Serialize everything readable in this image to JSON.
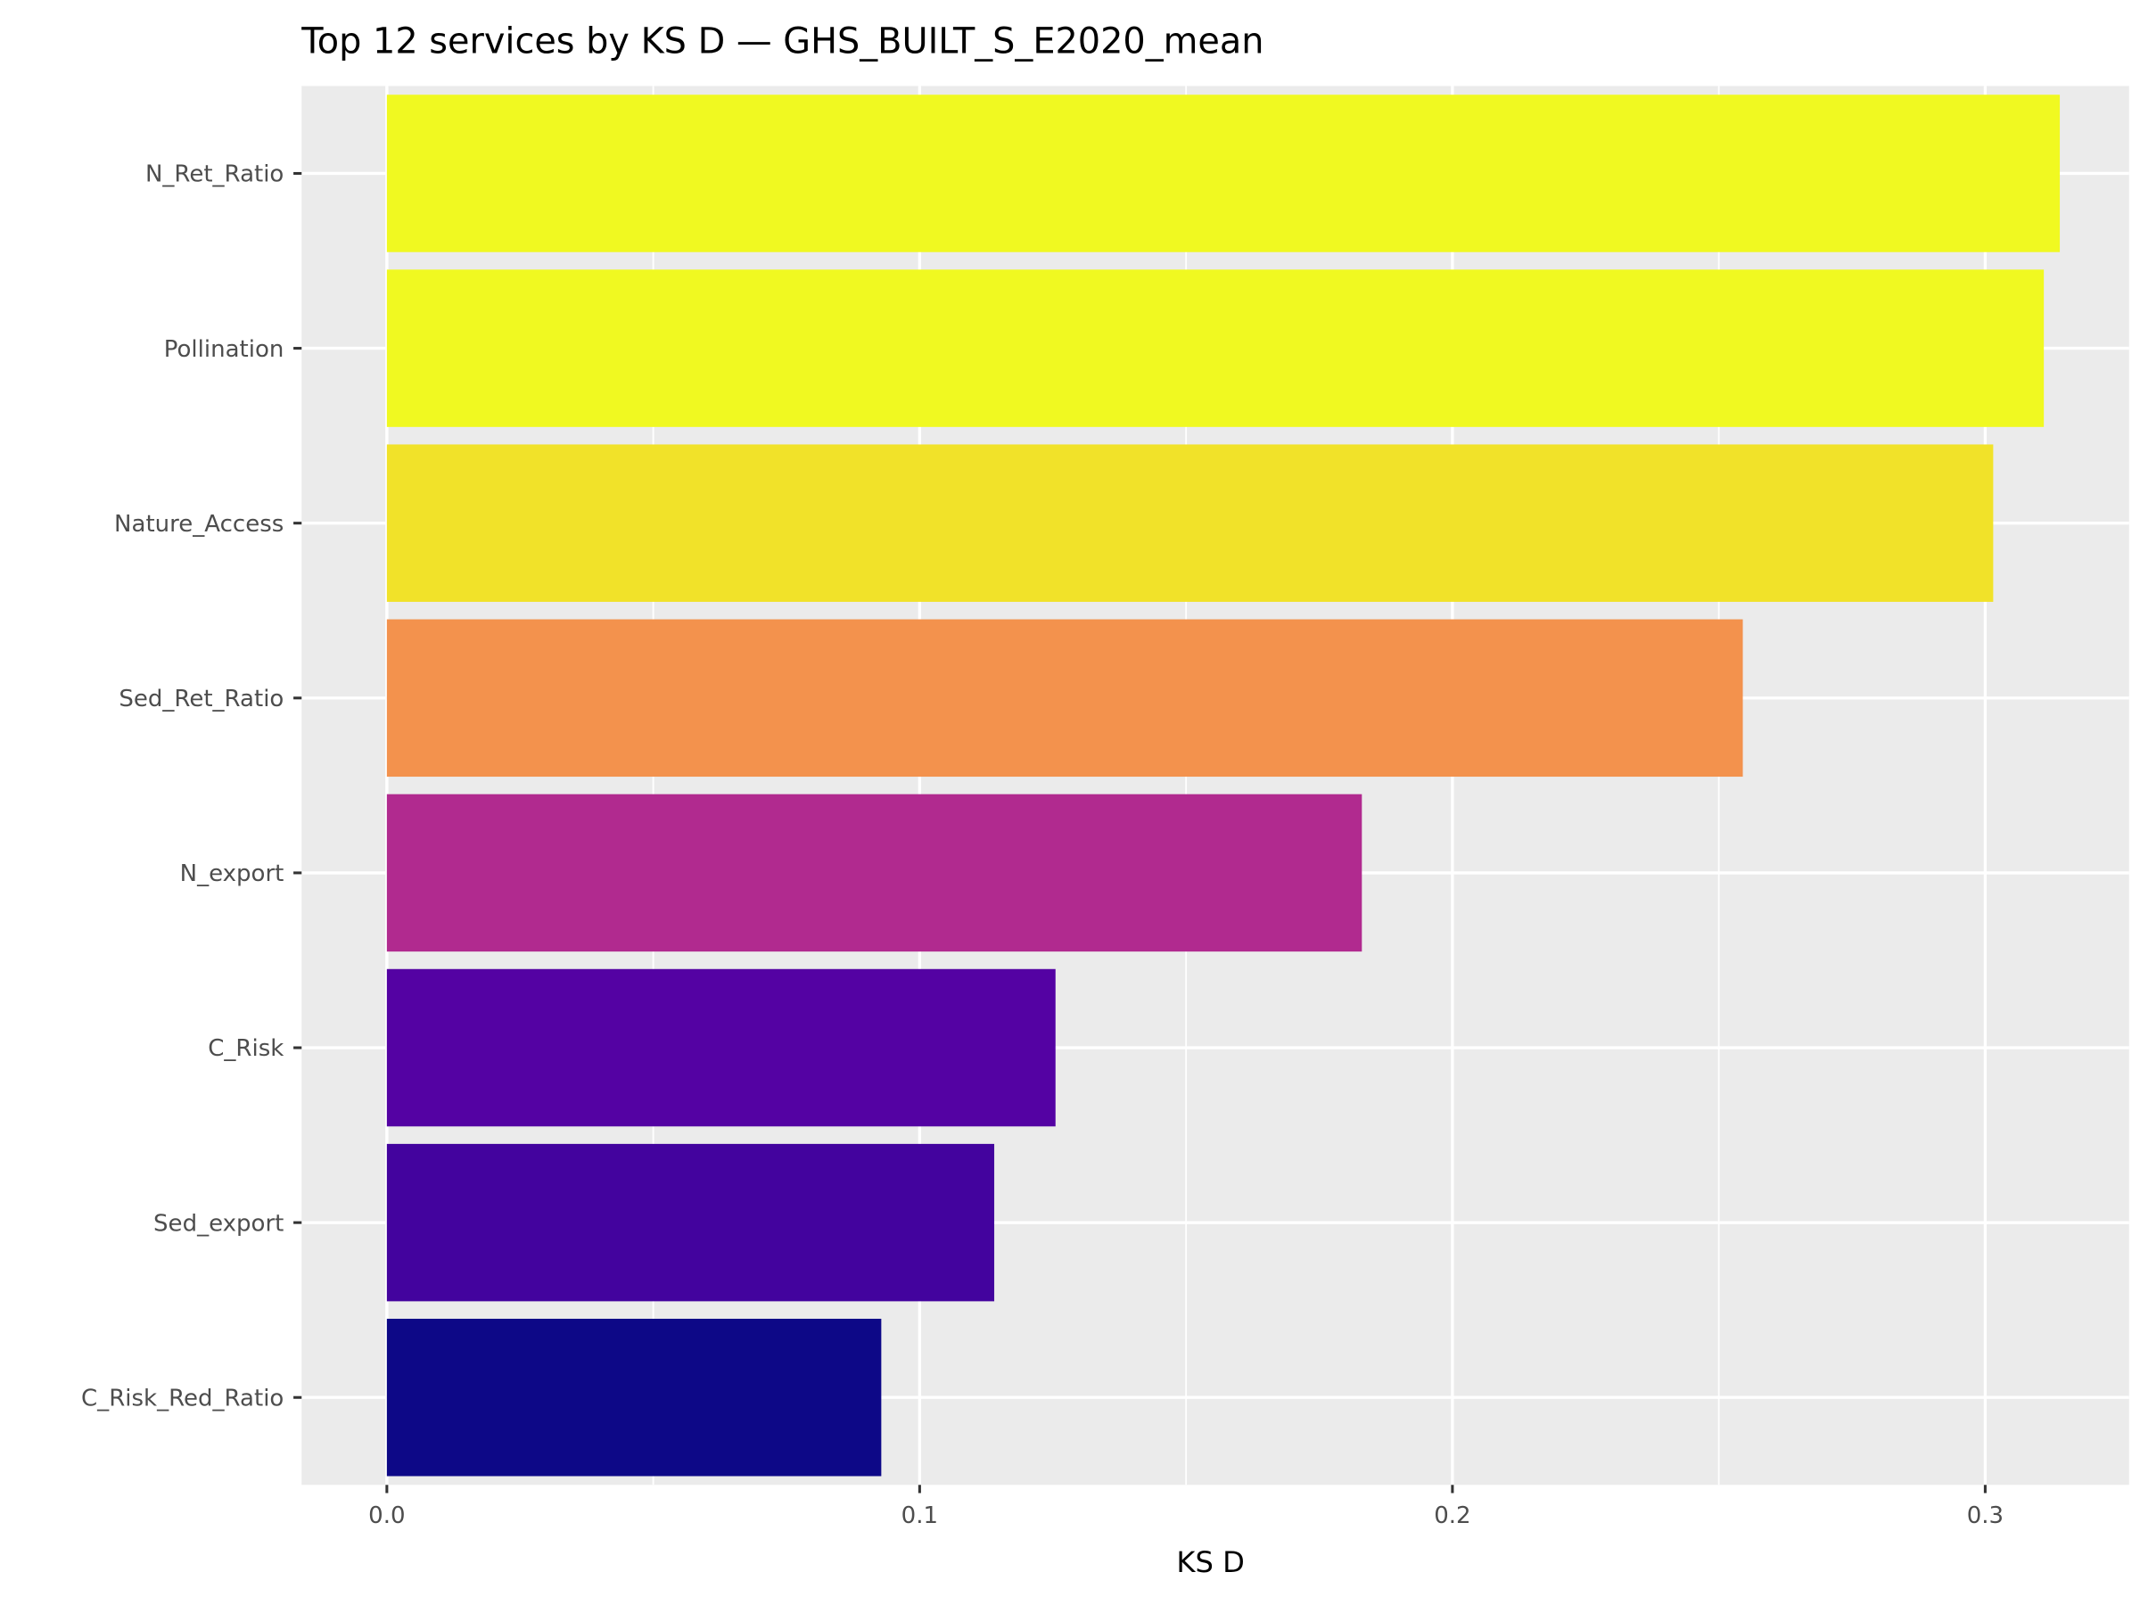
{
  "chart_data": {
    "type": "bar",
    "orientation": "horizontal",
    "title": "Top 12 services by KS D — GHS_BUILT_S_E2020_mean",
    "xlabel": "KS D",
    "ylabel": "",
    "xlim": [
      -0.016,
      0.327
    ],
    "xticks": [
      0.0,
      0.1,
      0.2,
      0.3
    ],
    "xtick_labels": [
      "0.0",
      "0.1",
      "0.2",
      "0.3"
    ],
    "grid": true,
    "legend": "none",
    "categories": [
      "N_Ret_Ratio",
      "Pollination",
      "Nature_Access",
      "Sed_Ret_Ratio",
      "N_export",
      "C_Risk",
      "Sed_export",
      "C_Risk_Red_Ratio"
    ],
    "values": [
      0.314,
      0.311,
      0.3015,
      0.2545,
      0.183,
      0.1255,
      0.114,
      0.0928
    ],
    "colors": [
      "#f0f921",
      "#f0f921",
      "#f1e229",
      "#f3924d",
      "#b12a8f",
      "#5402a3",
      "#43039e",
      "#0d0887"
    ],
    "panel_background": "#ebebeb",
    "gridline_color": "#ffffff"
  }
}
